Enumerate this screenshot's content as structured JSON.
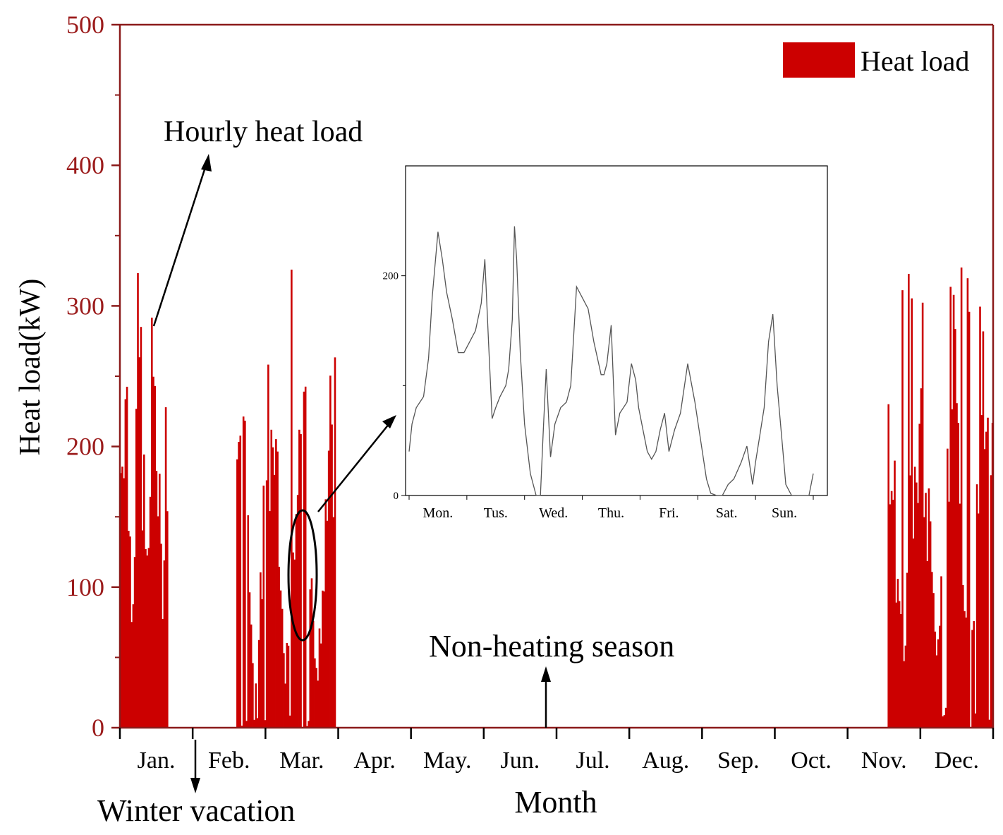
{
  "colors": {
    "bar": "#cc0000",
    "axis": "#8b1a1a",
    "tick_label": "#9b1b1b",
    "text": "#000000",
    "inset_line": "#555555"
  },
  "chart_data": [
    {
      "type": "bar",
      "title": "",
      "xlabel": "Month",
      "ylabel": "Heat load(kW)",
      "ylim": [
        0,
        500
      ],
      "yticks": [
        0,
        100,
        200,
        300,
        400,
        500
      ],
      "categories": [
        "Jan.",
        "Feb.",
        "Mar.",
        "Apr.",
        "May.",
        "Jun.",
        "Jul.",
        "Aug.",
        "Sep.",
        "Oct.",
        "Nov.",
        "Dec."
      ],
      "legend": {
        "label": "Heat load",
        "position": "top-right"
      },
      "series": [
        {
          "name": "Heat load",
          "segments": [
            {
              "start_month": 0.0,
              "end_month": 0.65,
              "peak_kW": 350,
              "typical_kW": [
                110,
                300
              ]
            },
            {
              "start_month": 1.6,
              "end_month": 2.95,
              "peak_kW": 347,
              "typical_kW": [
                30,
                250
              ]
            },
            {
              "start_month": 10.55,
              "end_month": 12.0,
              "peak_kW": 328,
              "typical_kW": [
                60,
                290
              ]
            }
          ]
        }
      ],
      "annotations": {
        "hourly": "Hourly heat load",
        "winter": "Winter vacation",
        "non_heating": "Non-heating season"
      }
    },
    {
      "type": "line",
      "title": "",
      "xlabel": "",
      "ylabel": "",
      "categories": [
        "Mon.",
        "Tus.",
        "Wed.",
        "Thu.",
        "Fri.",
        "Sat.",
        "Sun."
      ],
      "ylim": [
        0,
        300
      ],
      "yticks": [
        0,
        200
      ],
      "y_minor_ticks": [
        100
      ],
      "x": [
        0,
        0.2,
        0.5,
        1.0,
        1.35,
        1.6,
        2.0,
        2.3,
        2.6,
        3.0,
        3.4,
        3.8,
        4.2,
        4.6,
        5.0,
        5.25,
        5.5,
        5.75,
        6.0,
        6.3,
        6.5,
        6.7,
        6.9,
        7.15,
        7.3,
        7.45,
        7.7,
        8.0,
        8.4,
        8.8,
        9.1,
        9.3,
        9.5,
        9.8,
        10.1,
        10.5,
        10.9,
        11.2,
        11.6,
        12.0,
        12.4,
        12.8,
        13.3,
        13.5,
        13.7,
        14.0,
        14.3,
        14.6,
        15.1,
        15.4,
        15.7,
        15.9,
        16.2,
        16.5,
        16.8,
        17.1,
        17.4,
        17.7,
        18.0,
        18.4,
        18.8,
        19.3,
        19.8,
        20.2,
        20.6,
        20.9,
        21.3,
        21.7,
        22.1,
        22.5,
        23.0,
        23.4,
        23.8,
        24.0,
        24.3,
        24.6,
        24.9,
        25.2,
        25.5,
        25.8,
        26.1,
        26.5,
        26.9,
        27.3,
        27.7,
        28.0
      ],
      "values": [
        40,
        65,
        80,
        90,
        125,
        180,
        240,
        215,
        185,
        160,
        130,
        130,
        140,
        150,
        175,
        215,
        140,
        70,
        80,
        90,
        95,
        100,
        115,
        160,
        245,
        215,
        130,
        65,
        20,
        0,
        0,
        60,
        115,
        35,
        65,
        80,
        85,
        100,
        190,
        180,
        170,
        140,
        110,
        110,
        120,
        155,
        55,
        75,
        85,
        120,
        105,
        80,
        60,
        40,
        33,
        40,
        60,
        75,
        40,
        60,
        75,
        120,
        85,
        50,
        15,
        2,
        0,
        0,
        10,
        15,
        30,
        45,
        10,
        30,
        55,
        80,
        140,
        165,
        100,
        55,
        10,
        0,
        0,
        0,
        0,
        20
      ],
      "annotation_x_days": 4,
      "overall_curve_note": "hourly profile over one week (Mon. to Sun.)"
    }
  ]
}
